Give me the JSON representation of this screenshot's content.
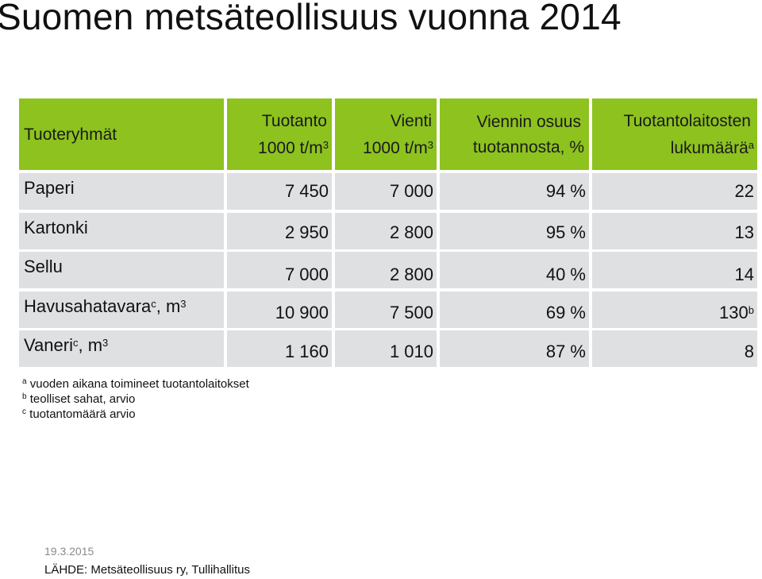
{
  "title": "Suomen metsäteollisuus vuonna 2014",
  "colors": {
    "header_bg": "#8dc21f",
    "row_bg": "#dfe0e2"
  },
  "table": {
    "headers": [
      {
        "lines": [
          "Tuoteryhmät"
        ]
      },
      {
        "lines": [
          "Tuotanto",
          "1000 t/m"
        ],
        "sup": "3"
      },
      {
        "lines": [
          "Vienti",
          "1000 t/m"
        ],
        "sup": "3"
      },
      {
        "lines": [
          "Viennin osuus",
          "tuotannosta, %"
        ]
      },
      {
        "lines": [
          "Tuotantolaitosten",
          "lukumäärä"
        ],
        "sup": "a"
      }
    ],
    "rows": [
      {
        "label": "Paperi",
        "cells": [
          "7 450",
          "7 000",
          "94 %",
          "22"
        ]
      },
      {
        "label": "Kartonki",
        "cells": [
          "2 950",
          "2 800",
          "95 %",
          "13"
        ]
      },
      {
        "label": "Sellu",
        "cells": [
          "7 000",
          "2 800",
          "40 %",
          "14"
        ]
      },
      {
        "label": "Havusahatavara",
        "label_sup": "c",
        "label_suffix": ", m",
        "label_suffix_sup": "3",
        "cells": [
          "10 900",
          "7 500",
          "69 %",
          "130"
        ],
        "last_sup": "b"
      },
      {
        "label": "Vaneri",
        "label_sup": "c",
        "label_suffix": ", m",
        "label_suffix_sup": "3",
        "cells": [
          "1 160",
          "1 010",
          "87 %",
          "8"
        ]
      }
    ]
  },
  "footnotes": [
    {
      "mark": "a",
      "text": "vuoden aikana toimineet tuotantolaitokset"
    },
    {
      "mark": "b",
      "text": "teolliset sahat, arvio"
    },
    {
      "mark": "c",
      "text": "tuotantomäärä arvio"
    }
  ],
  "date": "19.3.2015",
  "source": "LÄHDE: Metsäteollisuus ry, Tullihallitus"
}
